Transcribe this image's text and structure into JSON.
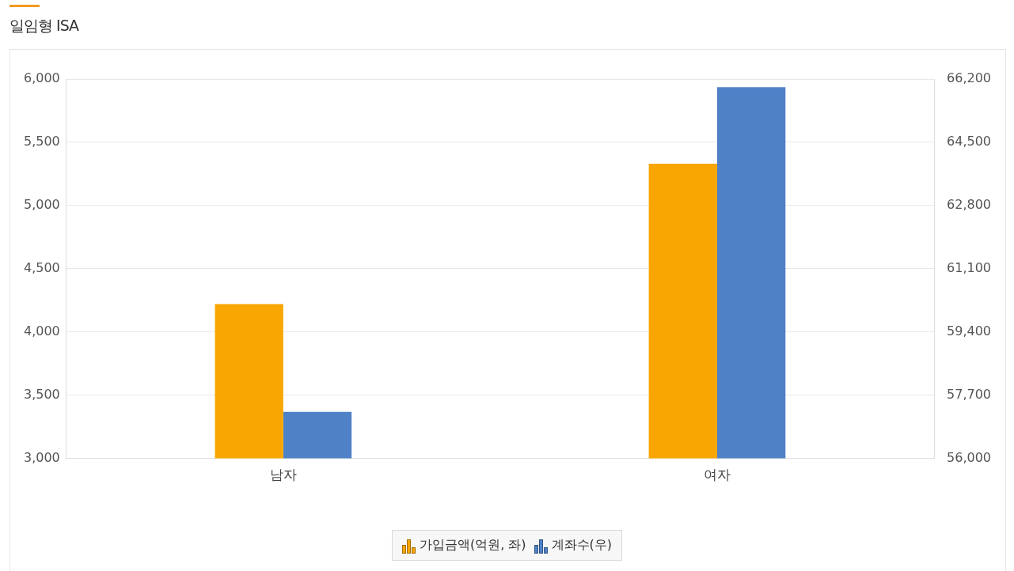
{
  "chart_data": {
    "type": "bar",
    "title": "일임형 ISA",
    "categories": [
      "남자",
      "여자"
    ],
    "series": [
      {
        "name": "가입금액(억원, 좌)",
        "color": "#f9a602",
        "values": [
          4220,
          5330
        ]
      },
      {
        "name": "계좌수(우)",
        "color": "#4f81c7",
        "values": [
          57250,
          65980
        ],
        "axis": "y2"
      }
    ],
    "ylim": [
      3000,
      6000
    ],
    "yticks": [
      {
        "value": 3000,
        "label": "3,000"
      },
      {
        "value": 3500,
        "label": "3,500"
      },
      {
        "value": 4000,
        "label": "4,000"
      },
      {
        "value": 4500,
        "label": "4,500"
      },
      {
        "value": 5000,
        "label": "5,000"
      },
      {
        "value": 5500,
        "label": "5,500"
      },
      {
        "value": 6000,
        "label": "6,000"
      }
    ],
    "y2lim": [
      56000,
      66200
    ],
    "y2ticks": [
      {
        "value": 56000,
        "label": "56,000"
      },
      {
        "value": 57700,
        "label": "57,700"
      },
      {
        "value": 59400,
        "label": "59,400"
      },
      {
        "value": 61100,
        "label": "61,100"
      },
      {
        "value": 62800,
        "label": "62,800"
      },
      {
        "value": 64500,
        "label": "64,500"
      },
      {
        "value": 66200,
        "label": "66,200"
      }
    ],
    "grid": "y",
    "legend": "bottom"
  }
}
